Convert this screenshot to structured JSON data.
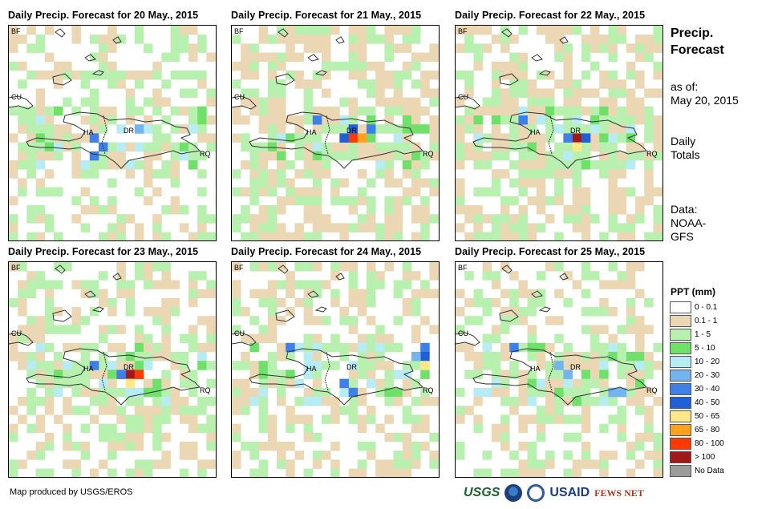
{
  "panels": [
    {
      "title": "Daily Precip. Forecast for 20 May., 2015",
      "seed": 3,
      "wet": 0.45,
      "labels": {
        "bf": "BF",
        "cu": "CU",
        "ha": "HA",
        "dr": "DR",
        "rq": "RQ"
      },
      "hotspots": [
        {
          "c": 9,
          "r": 12,
          "cls": "30-40"
        },
        {
          "c": 10,
          "r": 13,
          "cls": "30-40"
        },
        {
          "c": 14,
          "r": 11,
          "cls": "20-30"
        },
        {
          "c": 9,
          "r": 14,
          "cls": "30-40"
        }
      ]
    },
    {
      "title": "Daily Precip. Forecast for 21 May., 2015",
      "seed": 7,
      "wet": 0.6,
      "labels": {
        "bf": "BF",
        "cu": "CU",
        "ha": "HA",
        "dr": "DR",
        "rq": "RQ"
      },
      "hotspots": [
        {
          "c": 13,
          "r": 12,
          "cls": "80-100"
        },
        {
          "c": 14,
          "r": 12,
          "cls": "65-80"
        },
        {
          "c": 12,
          "r": 12,
          "cls": "40-50"
        },
        {
          "c": 13,
          "r": 11,
          "cls": "40-50"
        },
        {
          "c": 9,
          "r": 10,
          "cls": "30-40"
        },
        {
          "c": 15,
          "r": 11,
          "cls": "30-40"
        }
      ]
    },
    {
      "title": "Daily Precip. Forecast for 22 May., 2015",
      "seed": 11,
      "wet": 0.62,
      "labels": {
        "bf": "BF",
        "cu": "CU",
        "ha": "HA",
        "dr": "DR",
        "rq": "RQ"
      },
      "hotspots": [
        {
          "c": 13,
          "r": 12,
          "cls": ">100"
        },
        {
          "c": 14,
          "r": 12,
          "cls": "40-50"
        },
        {
          "c": 12,
          "r": 12,
          "cls": "30-40"
        },
        {
          "c": 13,
          "r": 13,
          "cls": "50-65"
        },
        {
          "c": 7,
          "r": 10,
          "cls": "30-40"
        }
      ]
    },
    {
      "title": "Daily Precip. Forecast for 23 May., 2015",
      "seed": 5,
      "wet": 0.55,
      "labels": {
        "bf": "BF",
        "cu": "CU",
        "ha": "HA",
        "dr": "DR",
        "rq": "RQ"
      },
      "hotspots": [
        {
          "c": 13,
          "r": 12,
          "cls": ">100"
        },
        {
          "c": 14,
          "r": 12,
          "cls": "80-100"
        },
        {
          "c": 13,
          "r": 13,
          "cls": "50-65"
        },
        {
          "c": 12,
          "r": 12,
          "cls": "30-40"
        },
        {
          "c": 9,
          "r": 11,
          "cls": "30-40"
        }
      ]
    },
    {
      "title": "Daily Precip. Forecast for 24 May., 2015",
      "seed": 13,
      "wet": 0.5,
      "labels": {
        "bf": "BF",
        "cu": "CU",
        "ha": "HA",
        "dr": "DR",
        "rq": "RQ"
      },
      "hotspots": [
        {
          "c": 21,
          "r": 9,
          "cls": "30-40"
        },
        {
          "c": 21,
          "r": 10,
          "cls": "40-50"
        },
        {
          "c": 21,
          "r": 11,
          "cls": "50-65"
        },
        {
          "c": 20,
          "r": 10,
          "cls": "20-30"
        },
        {
          "c": 12,
          "r": 13,
          "cls": "30-40"
        },
        {
          "c": 13,
          "r": 14,
          "cls": "30-40"
        },
        {
          "c": 6,
          "r": 9,
          "cls": "30-40"
        }
      ]
    },
    {
      "title": "Daily Precip. Forecast for 25 May., 2015",
      "seed": 17,
      "wet": 0.5,
      "labels": {
        "bf": "BF",
        "cu": "CU",
        "ha": "HA",
        "dr": "DR",
        "rq": "RQ"
      },
      "hotspots": [
        {
          "c": 6,
          "r": 9,
          "cls": "30-40"
        },
        {
          "c": 11,
          "r": 11,
          "cls": "20-30"
        },
        {
          "c": 12,
          "r": 12,
          "cls": "20-30"
        },
        {
          "c": 17,
          "r": 14,
          "cls": "20-30"
        },
        {
          "c": 18,
          "r": 14,
          "cls": "20-30"
        }
      ]
    }
  ],
  "side": {
    "title_line1": "Precip.",
    "title_line2": "Forecast",
    "asof_label": "as of:",
    "asof_date": "May 20, 2015",
    "totals_line1": "Daily",
    "totals_line2": "Totals",
    "data_label": "Data:",
    "data_source_line1": "NOAA-",
    "data_source_line2": "GFS"
  },
  "legend": {
    "title": "PPT (mm)",
    "items": [
      {
        "key": "0-0.1",
        "label": "0 - 0.1",
        "color": "#ffffff"
      },
      {
        "key": "0.1-1",
        "label": "0.1 - 1",
        "color": "#ebd7b4"
      },
      {
        "key": "1-5",
        "label": "1 - 5",
        "color": "#b8f0b0"
      },
      {
        "key": "5-10",
        "label": "5 - 10",
        "color": "#6fe06a"
      },
      {
        "key": "10-20",
        "label": "10 - 20",
        "color": "#b8ecf4"
      },
      {
        "key": "20-30",
        "label": "20 - 30",
        "color": "#73b4ee"
      },
      {
        "key": "30-40",
        "label": "30 - 40",
        "color": "#3e7fe8"
      },
      {
        "key": "40-50",
        "label": "40 - 50",
        "color": "#1f5fd8"
      },
      {
        "key": "50-65",
        "label": "50 - 65",
        "color": "#ffe88a"
      },
      {
        "key": "65-80",
        "label": "65 - 80",
        "color": "#ffa01e"
      },
      {
        "key": "80-100",
        "label": "80 - 100",
        "color": "#ff3a00"
      },
      {
        "key": ">100",
        "label": "> 100",
        "color": "#a01818"
      },
      {
        "key": "nodata",
        "label": "No Data",
        "color": "#9b9b9b"
      }
    ]
  },
  "footer": {
    "credit": "Map produced by USGS/EROS",
    "logo_usgs": "USGS",
    "logo_usaid": "USAID",
    "logo_fews": "FEWS NET"
  }
}
